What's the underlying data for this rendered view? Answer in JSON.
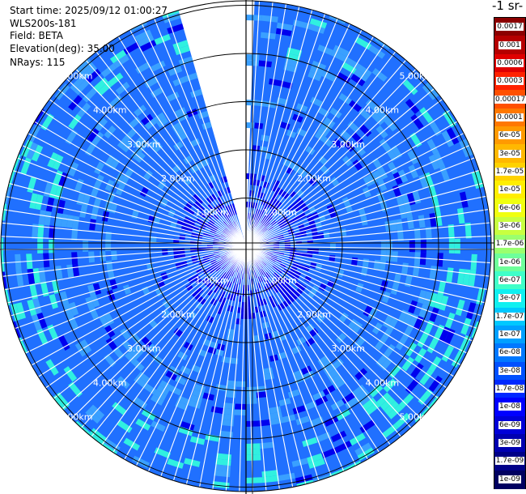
{
  "info": {
    "start_time": "Start time: 2025/09/12 01:00:27",
    "device": "WLS200s-181",
    "field": "Field: BETA",
    "elevation": "Elevation(deg): 35.00",
    "nrays": "NRays: 115"
  },
  "colorbar": {
    "unit_label": "-1 sr-",
    "labels": [
      "0.0017",
      "0.001",
      "0.0006",
      "0.0003",
      "0.00017",
      "0.0001",
      "6e-05",
      "3e-05",
      "1.7e-05",
      "1e-05",
      "6e-06",
      "3e-06",
      "1.7e-06",
      "1e-06",
      "6e-07",
      "3e-07",
      "1.7e-07",
      "1e-07",
      "6e-08",
      "3e-08",
      "1.7e-08",
      "1e-08",
      "6e-09",
      "3e-09",
      "1.7e-09",
      "1e-09"
    ],
    "colors": [
      "#8b0000",
      "#b50000",
      "#e00000",
      "#ff2200",
      "#ff5000",
      "#ff7800",
      "#ff9a00",
      "#ffb800",
      "#ffd200",
      "#ffee00",
      "#f0ff10",
      "#c8ff40",
      "#9aff6e",
      "#6eff9a",
      "#40ffc8",
      "#10f0f0",
      "#00c8ff",
      "#00a0ff",
      "#0078ff",
      "#0050ff",
      "#0028ff",
      "#0000ff",
      "#0000d8",
      "#0000b0",
      "#000088",
      "#000060"
    ]
  },
  "map": {
    "range_unit": "km",
    "rings_km": [
      1,
      2,
      3,
      4,
      5
    ],
    "gap_sector_deg": [
      -16,
      2
    ],
    "colors": {
      "background_blue": "#2070ff",
      "light_blue": "#3aa0ff",
      "cyan": "#30f0e0",
      "green": "#80ff90",
      "dark_blue": "#0000ee"
    }
  }
}
